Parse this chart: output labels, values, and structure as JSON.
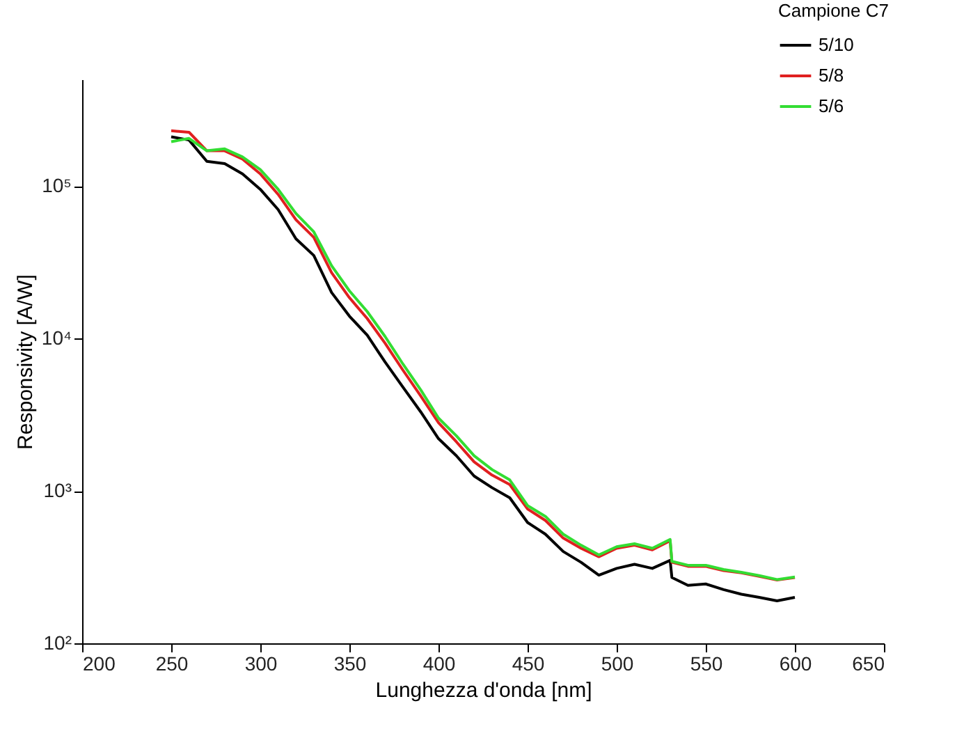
{
  "chart_data": {
    "type": "line",
    "xlabel": "Lunghezza d'onda [nm]",
    "ylabel": "Responsivity [A/W]",
    "legend_title": "Campione C7",
    "legend": "top right",
    "log": true,
    "grid": false,
    "x": [
      250,
      260,
      270,
      280,
      290,
      300,
      310,
      320,
      330,
      340,
      350,
      360,
      370,
      380,
      390,
      400,
      410,
      420,
      430,
      440,
      450,
      460,
      470,
      480,
      490,
      500,
      510,
      520,
      530,
      531,
      540,
      550,
      560,
      570,
      580,
      590,
      600
    ],
    "xlim": [
      200,
      650
    ],
    "xticks": [
      200,
      250,
      300,
      350,
      400,
      450,
      500,
      550,
      600,
      650
    ],
    "ylim": [
      100,
      500000
    ],
    "yticks": [
      {
        "value": 100,
        "label": "10²"
      },
      {
        "value": 1000,
        "label": "10³"
      },
      {
        "value": 10000,
        "label": "10⁴"
      },
      {
        "value": 100000,
        "label": "10⁵"
      }
    ],
    "series": [
      {
        "name": "5/10",
        "color": "#000000",
        "values": [
          210000,
          200000,
          145000,
          140000,
          120000,
          95000,
          70000,
          45000,
          35000,
          20000,
          14000,
          10500,
          7000,
          4800,
          3300,
          2200,
          1700,
          1250,
          1050,
          900,
          620,
          520,
          400,
          340,
          280,
          310,
          330,
          310,
          350,
          270,
          240,
          245,
          225,
          210,
          200,
          190,
          200
        ]
      },
      {
        "name": "5/8",
        "color": "#e02020",
        "values": [
          230000,
          225000,
          170000,
          170000,
          150000,
          120000,
          88000,
          60000,
          46000,
          27000,
          18500,
          13500,
          9300,
          6200,
          4200,
          2800,
          2100,
          1550,
          1270,
          1100,
          760,
          640,
          490,
          420,
          370,
          420,
          440,
          410,
          470,
          340,
          320,
          320,
          300,
          290,
          275,
          260,
          270
        ]
      },
      {
        "name": "5/6",
        "color": "#33dd33",
        "values": [
          195000,
          205000,
          170000,
          175000,
          155000,
          128000,
          95000,
          66000,
          50000,
          30000,
          20500,
          15000,
          10300,
          6800,
          4600,
          3000,
          2300,
          1700,
          1380,
          1180,
          800,
          680,
          520,
          440,
          380,
          430,
          450,
          420,
          480,
          345,
          325,
          325,
          305,
          292,
          278,
          262,
          272
        ]
      }
    ]
  }
}
